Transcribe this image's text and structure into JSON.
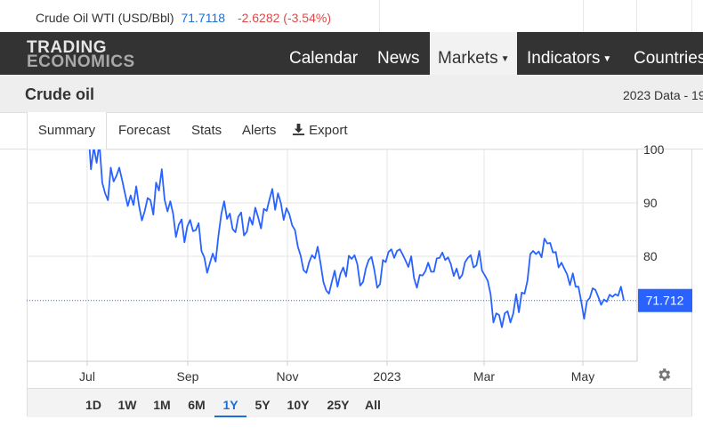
{
  "ticker": {
    "name": "Crude Oil WTI (USD/Bbl)",
    "price": "71.7118",
    "change": "-2.6282 (-3.54%)"
  },
  "nav": {
    "logo_line1": "TRADING",
    "logo_line2": "ECONOMICS",
    "items": [
      "Calendar",
      "News",
      "Markets",
      "Indicators",
      "Countries"
    ]
  },
  "page": {
    "title": "Crude oil",
    "meta": "2023 Data - 19"
  },
  "tabs": [
    "Summary",
    "Forecast",
    "Stats",
    "Alerts",
    "Export"
  ],
  "ranges": [
    "1D",
    "1W",
    "1M",
    "6M",
    "1Y",
    "5Y",
    "10Y",
    "25Y",
    "All"
  ],
  "active_range": "1Y",
  "colors": {
    "line": "#2962ff",
    "accent": "#1a6fd8",
    "down": "#e04848",
    "navbar": "#333333"
  },
  "icons": [
    "export-icon",
    "gear-icon",
    "caret-down-icon"
  ],
  "chart_data": {
    "type": "line",
    "title": "",
    "xlabel": "",
    "ylabel": "",
    "x_ticks": [
      "Jul",
      "Sep",
      "Nov",
      "2023",
      "Mar",
      "May"
    ],
    "y_ticks": [
      80,
      90,
      100
    ],
    "ylim": [
      65,
      100
    ],
    "last_value": 71.712,
    "last_label": "71.712",
    "series": [
      {
        "values": [
          104.5,
          96.3,
          100.4,
          97.5,
          101.2,
          93.8,
          91.8,
          90.5,
          96.6,
          94.0,
          95.1,
          96.6,
          94.3,
          91.8,
          89.4,
          91.4,
          89.6,
          93.1,
          89.4,
          86.7,
          88.5,
          90.9,
          90.5,
          87.8,
          93.8,
          92.3,
          96.3,
          90.6,
          88.4,
          90.3,
          87.9,
          83.6,
          85.9,
          86.9,
          82.6,
          85.6,
          86.8,
          84.7,
          84.9,
          86.2,
          81.0,
          79.8,
          76.9,
          78.8,
          80.5,
          79.0,
          83.9,
          87.9,
          90.3,
          87.0,
          88.0,
          85.1,
          84.5,
          87.4,
          88.2,
          83.9,
          84.6,
          87.3,
          85.9,
          89.1,
          87.3,
          85.2,
          88.9,
          88.5,
          90.7,
          92.6,
          88.7,
          91.8,
          90.0,
          86.8,
          89.0,
          87.9,
          85.8,
          84.9,
          81.8,
          80.1,
          77.4,
          76.9,
          78.9,
          80.2,
          79.6,
          81.8,
          78.7,
          75.2,
          73.6,
          73.0,
          75.2,
          77.3,
          74.3,
          76.7,
          77.9,
          76.2,
          80.1,
          79.5,
          80.2,
          78.5,
          74.5,
          75.2,
          77.7,
          79.3,
          79.9,
          77.4,
          74.1,
          74.8,
          79.3,
          78.9,
          80.8,
          81.3,
          79.7,
          81.0,
          81.3,
          80.3,
          79.2,
          78.0,
          80.0,
          75.9,
          74.1,
          76.5,
          76.4,
          77.2,
          78.8,
          77.1,
          77.1,
          79.6,
          79.7,
          80.7,
          79.3,
          79.8,
          78.5,
          76.3,
          77.7,
          75.8,
          76.5,
          78.9,
          79.7,
          80.2,
          77.9,
          78.3,
          81.0,
          77.3,
          76.4,
          75.4,
          72.9,
          67.6,
          69.3,
          69.0,
          66.7,
          69.3,
          69.7,
          67.6,
          69.3,
          72.9,
          69.5,
          73.2,
          73.0,
          75.4,
          80.4,
          81.0,
          80.4,
          80.9,
          79.8,
          83.3,
          82.4,
          82.5,
          80.7,
          80.8,
          77.9,
          78.8,
          77.7,
          76.6,
          74.6,
          76.8,
          74.3,
          74.3,
          71.5,
          68.3,
          71.6,
          72.2,
          74.0,
          73.7,
          72.4,
          70.9,
          71.9,
          71.5,
          72.8,
          72.4,
          72.9,
          72.6,
          74.3,
          71.71
        ]
      }
    ]
  }
}
